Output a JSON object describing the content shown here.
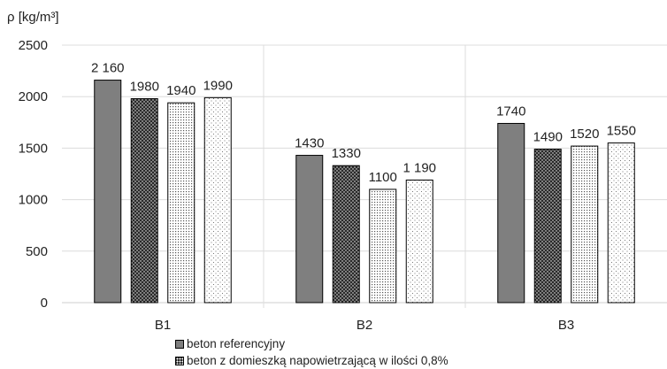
{
  "chart_data": {
    "type": "bar",
    "ylabel": "ρ [kg/m³]",
    "categories": [
      "B1",
      "B2",
      "B3"
    ],
    "ylim": [
      0,
      2500
    ],
    "yticks": [
      0,
      500,
      1000,
      1500,
      2000,
      2500
    ],
    "ytick_labels": [
      "0",
      "500",
      "1000",
      "1500",
      "2000",
      "2500"
    ],
    "grid": "horizontal",
    "legend_position": "bottom-left",
    "series": [
      {
        "name": "beton referencyjny",
        "values": [
          2160,
          1430,
          1740
        ],
        "value_labels": [
          "2 160",
          "1430",
          "1740"
        ],
        "pattern": "solid-gray",
        "color": "#7f7f7f"
      },
      {
        "name": "beton z domieszką napowietrzającą w ilości 0,8%",
        "values": [
          1980,
          1330,
          1490
        ],
        "value_labels": [
          "1980",
          "1330",
          "1490"
        ],
        "pattern": "dense-dots",
        "color": "#404040"
      },
      {
        "values": [
          1940,
          1100,
          1520
        ],
        "value_labels": [
          "1940",
          "1100",
          "1520"
        ],
        "pattern": "medium-dots",
        "color": "#808080"
      },
      {
        "values": [
          1990,
          1190,
          1550
        ],
        "value_labels": [
          "1990",
          "1 190",
          "1550"
        ],
        "pattern": "sparse-dots",
        "color": "#9a9a9a"
      }
    ]
  }
}
